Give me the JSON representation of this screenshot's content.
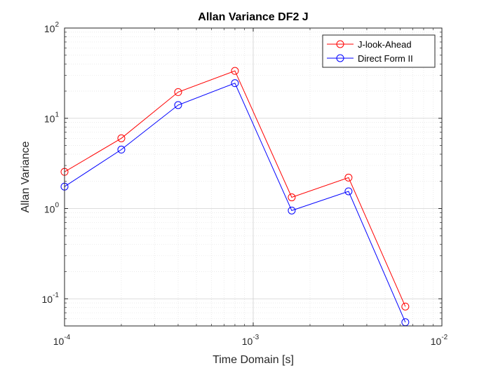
{
  "chart_data": {
    "type": "line",
    "title": "Allan Variance DF2 J",
    "xlabel": "Time Domain [s]",
    "ylabel": "Allan Variance",
    "x_scale": "log",
    "y_scale": "log",
    "xlim": [
      0.0001,
      0.01
    ],
    "ylim": [
      0.05,
      100
    ],
    "x_ticks": [
      {
        "value": 0.0001,
        "base": "10",
        "exp": "-4"
      },
      {
        "value": 0.001,
        "base": "10",
        "exp": "-3"
      },
      {
        "value": 0.01,
        "base": "10",
        "exp": "-2"
      }
    ],
    "y_ticks": [
      {
        "value": 0.1,
        "base": "10",
        "exp": "-1"
      },
      {
        "value": 1,
        "base": "10",
        "exp": "0"
      },
      {
        "value": 10,
        "base": "10",
        "exp": "1"
      },
      {
        "value": 100,
        "base": "10",
        "exp": "2"
      }
    ],
    "grid": true,
    "minor_grid": true,
    "legend_position": "top-right",
    "x": [
      0.0001,
      0.0002,
      0.0004,
      0.0008,
      0.0016,
      0.0032,
      0.0064
    ],
    "series": [
      {
        "name": "J-look-Ahead",
        "color": "#ff0000",
        "marker": "circle",
        "values": [
          2.55,
          6.0,
          19.5,
          33.5,
          1.33,
          2.2,
          0.082
        ]
      },
      {
        "name": "Direct Form II",
        "color": "#0000ff",
        "marker": "circle",
        "values": [
          1.75,
          4.5,
          14.0,
          24.5,
          0.95,
          1.55,
          0.055
        ]
      }
    ]
  }
}
